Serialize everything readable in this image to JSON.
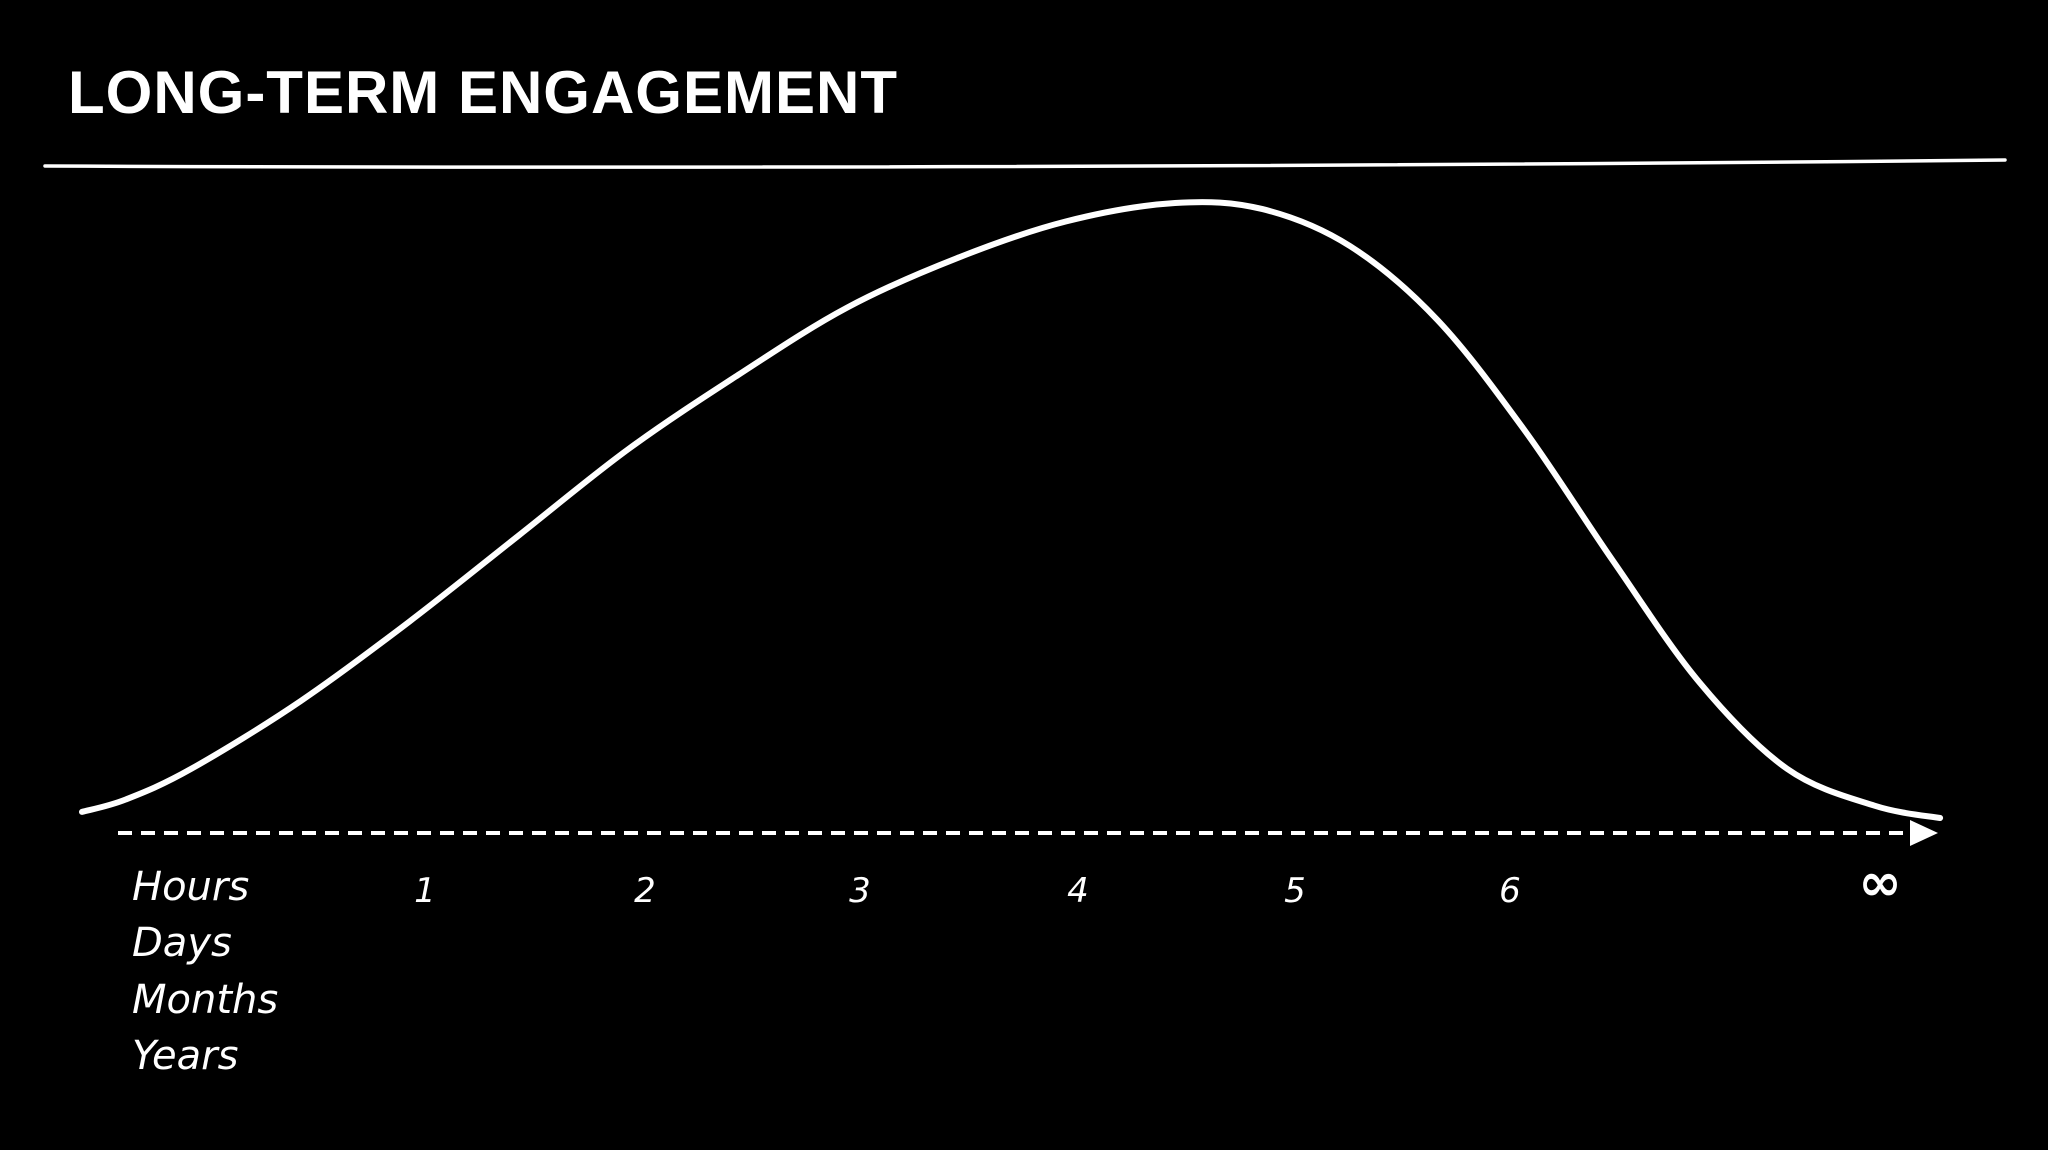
{
  "slide": {
    "title": "LONG-TERM ENGAGEMENT"
  },
  "colors": {
    "background": "#000000",
    "foreground": "#ffffff"
  },
  "chart_data": {
    "type": "line",
    "title": "LONG-TERM ENGAGEMENT",
    "xlabel": "",
    "ylabel": "",
    "x_unit_labels": [
      "Hours",
      "Days",
      "Months",
      "Years"
    ],
    "tick_labels": [
      "1",
      "2",
      "3",
      "4",
      "5",
      "6",
      "∞"
    ],
    "ceiling_line": true,
    "x_axis_style": "dashed-arrow",
    "grid": false,
    "legend": "none",
    "xlim": [
      0,
      8.6
    ],
    "ylim": [
      0,
      1
    ],
    "series": [
      {
        "x": [
          0,
          0.2,
          0.5,
          1.0,
          1.5,
          2.0,
          2.5,
          3.0,
          3.5,
          4.0,
          4.5,
          5.0,
          5.4,
          5.8,
          6.2,
          6.6,
          7.0,
          7.4,
          7.8,
          8.2,
          8.5
        ],
        "y": [
          0.01,
          0.03,
          0.08,
          0.19,
          0.32,
          0.46,
          0.6,
          0.72,
          0.83,
          0.91,
          0.97,
          1.0,
          0.99,
          0.93,
          0.81,
          0.63,
          0.42,
          0.22,
          0.08,
          0.02,
          0.0
        ]
      }
    ]
  }
}
